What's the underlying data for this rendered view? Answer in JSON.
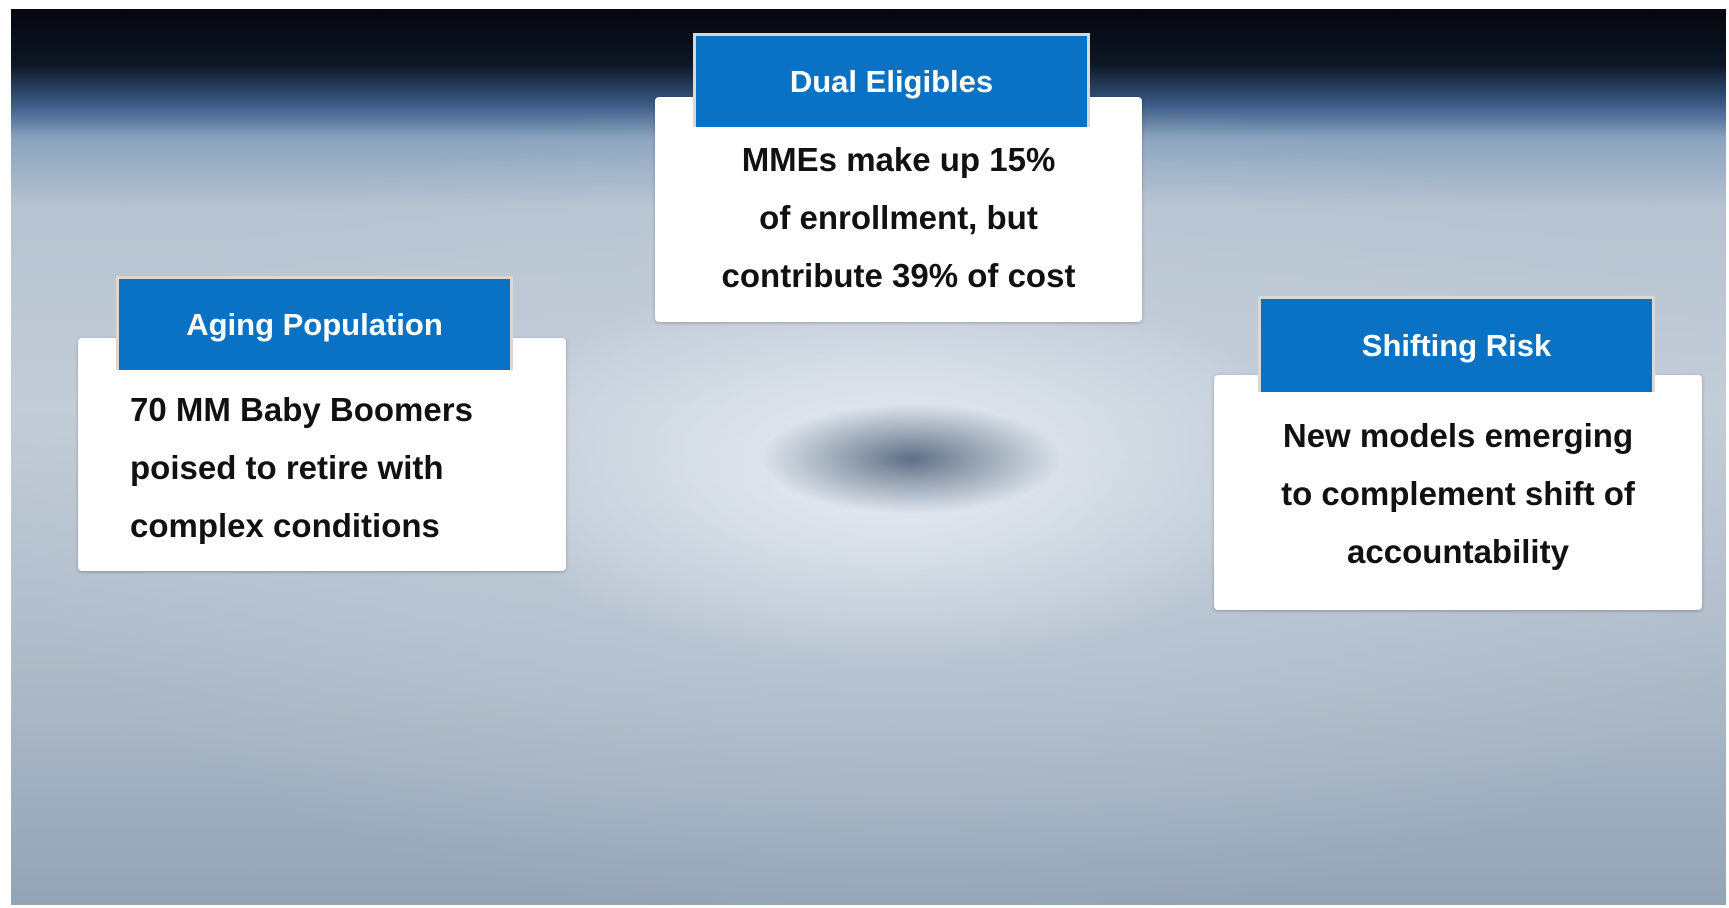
{
  "boxes": [
    {
      "title": "Dual Eligibles",
      "lines": [
        "MMEs make up 15%",
        "of enrollment, but",
        "contribute 39% of cost"
      ]
    },
    {
      "title": "Aging Population",
      "lines": [
        "70 MM Baby Boomers",
        "poised to retire with",
        "complex conditions"
      ]
    },
    {
      "title": "Shifting Risk",
      "lines": [
        "New models  emerging",
        "to complement shift of",
        "accountability"
      ]
    }
  ]
}
